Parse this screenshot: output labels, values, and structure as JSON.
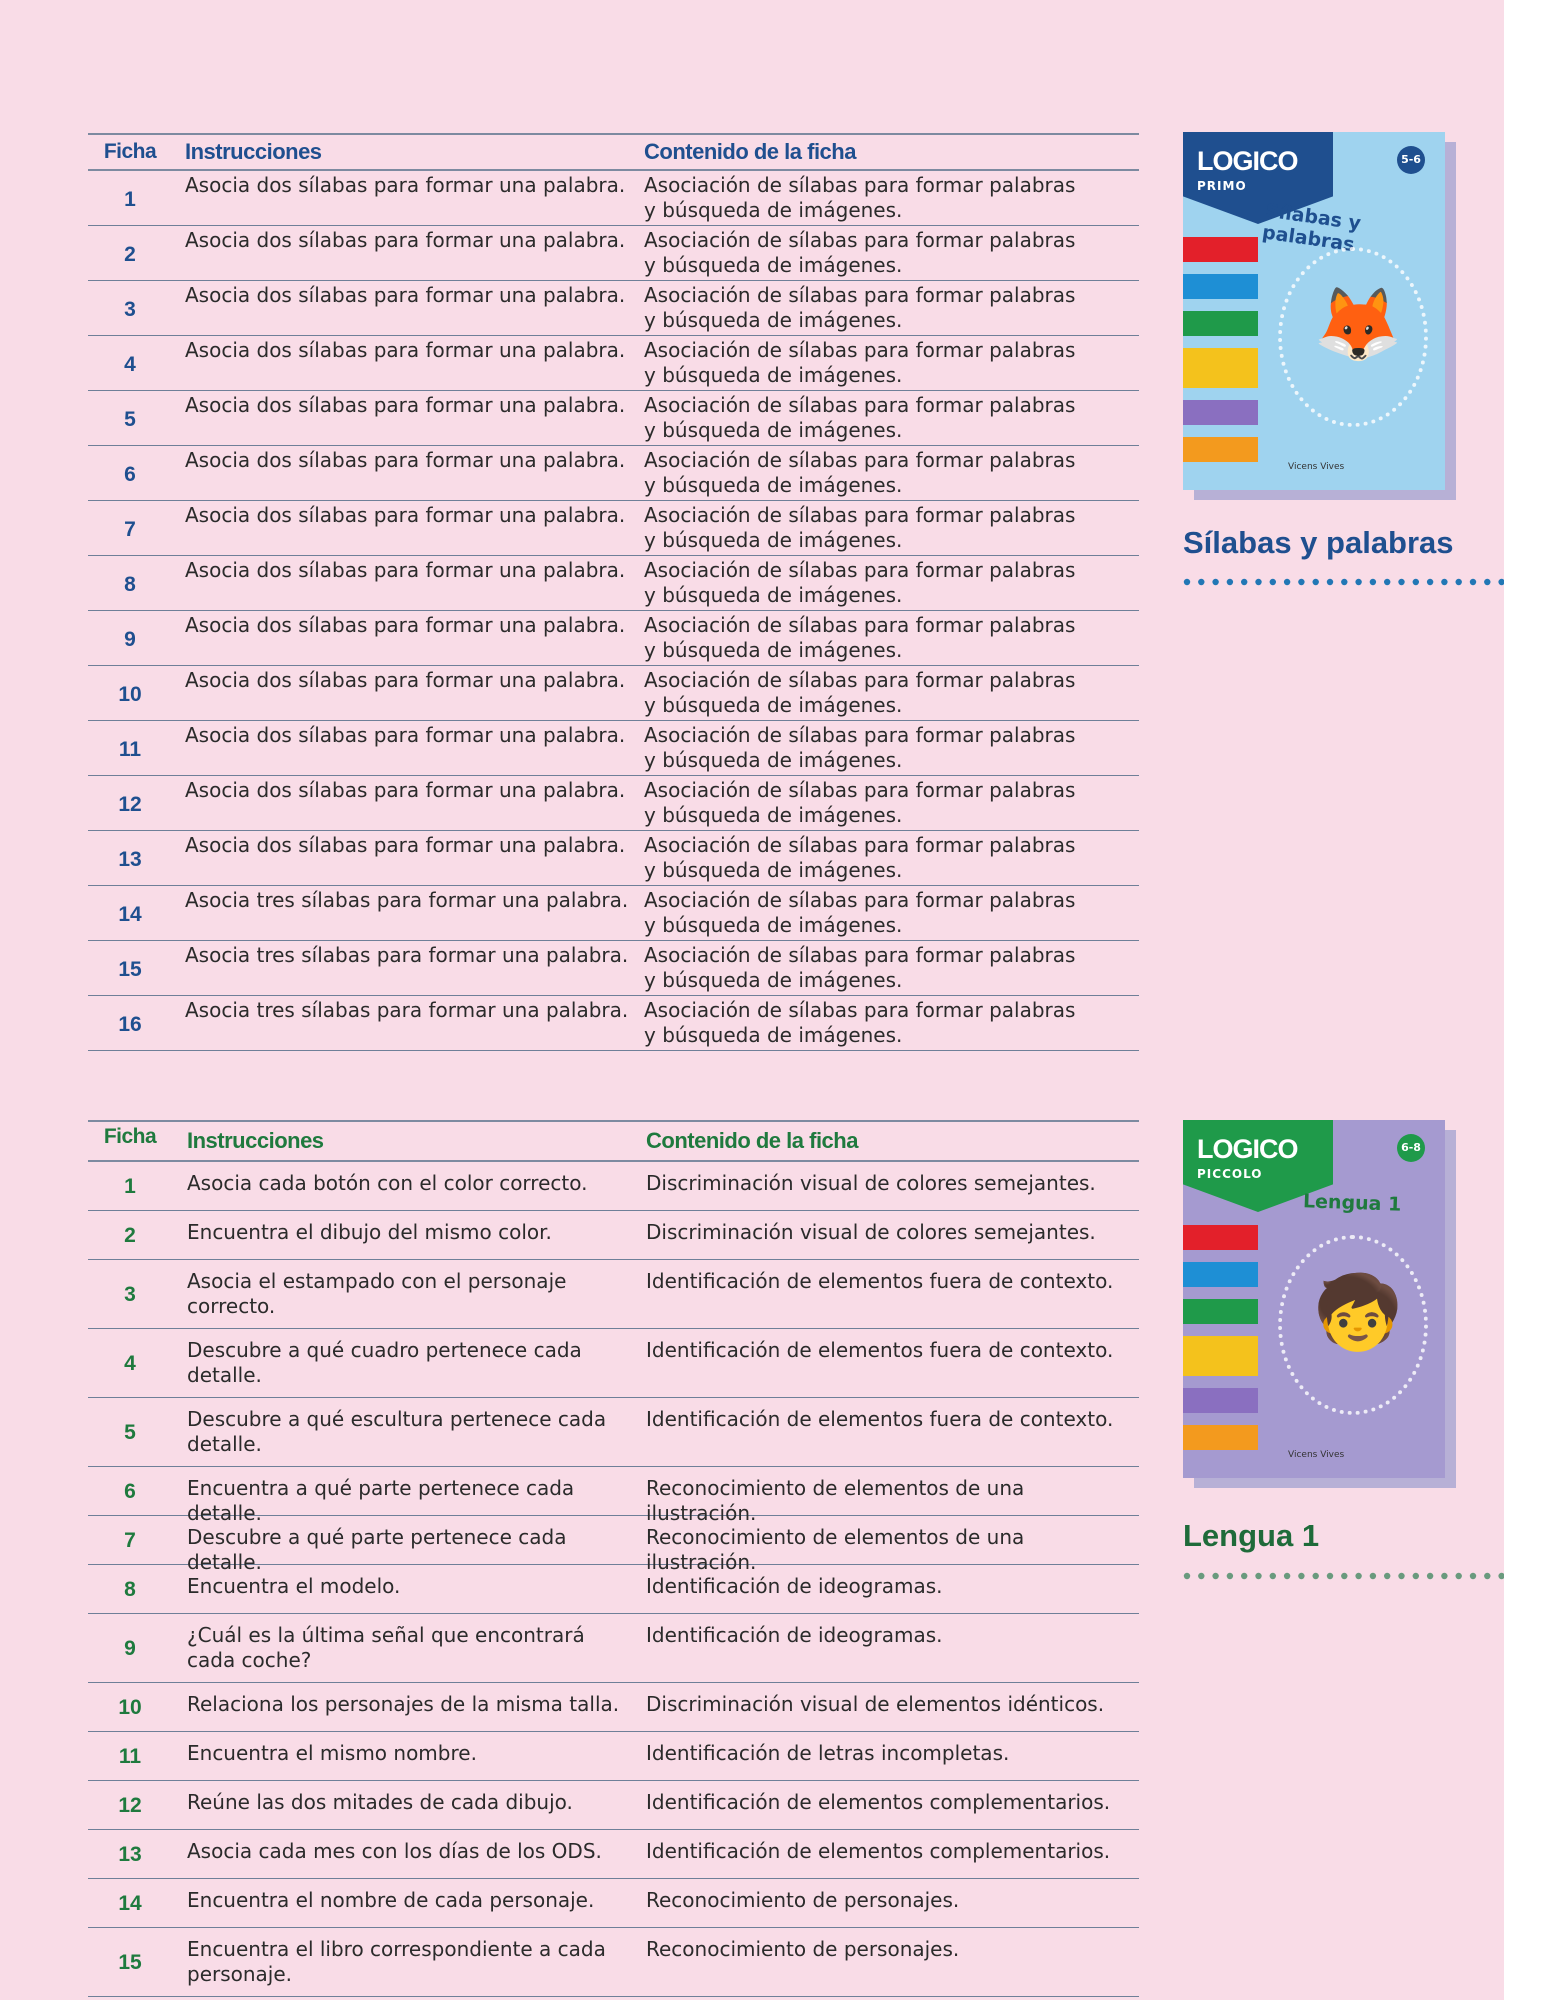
{
  "table1": {
    "headers": {
      "ficha": "Ficha",
      "instrucciones": "Instrucciones",
      "contenido": "Contenido de la ficha"
    },
    "rows": [
      {
        "n": "1",
        "i": "Asocia dos sílabas para formar una palabra.",
        "c1": "Asociación de sílabas para formar palabras",
        "c2": "y búsqueda de imágenes."
      },
      {
        "n": "2",
        "i": "Asocia dos sílabas para formar una palabra.",
        "c1": "Asociación de sílabas para formar palabras",
        "c2": "y búsqueda de imágenes."
      },
      {
        "n": "3",
        "i": "Asocia dos sílabas para formar una palabra.",
        "c1": "Asociación de sílabas para formar palabras",
        "c2": "y búsqueda de imágenes."
      },
      {
        "n": "4",
        "i": "Asocia dos sílabas para formar una palabra.",
        "c1": "Asociación de sílabas para formar palabras",
        "c2": "y búsqueda de imágenes."
      },
      {
        "n": "5",
        "i": "Asocia dos sílabas para formar una palabra.",
        "c1": "Asociación de sílabas para formar palabras",
        "c2": "y búsqueda de imágenes."
      },
      {
        "n": "6",
        "i": "Asocia dos sílabas para formar una palabra.",
        "c1": "Asociación de sílabas para formar palabras",
        "c2": "y búsqueda de imágenes."
      },
      {
        "n": "7",
        "i": "Asocia dos sílabas para formar una palabra.",
        "c1": "Asociación de sílabas para formar palabras",
        "c2": "y búsqueda de imágenes."
      },
      {
        "n": "8",
        "i": "Asocia dos sílabas para formar una palabra.",
        "c1": "Asociación de sílabas para formar palabras",
        "c2": "y búsqueda de imágenes."
      },
      {
        "n": "9",
        "i": "Asocia dos sílabas para formar una palabra.",
        "c1": "Asociación de sílabas para formar palabras",
        "c2": "y búsqueda de imágenes."
      },
      {
        "n": "10",
        "i": "Asocia dos sílabas para formar una palabra.",
        "c1": "Asociación de sílabas para formar palabras",
        "c2": "y búsqueda de imágenes."
      },
      {
        "n": "11",
        "i": "Asocia dos sílabas para formar una palabra.",
        "c1": "Asociación de sílabas para formar palabras",
        "c2": "y búsqueda de imágenes."
      },
      {
        "n": "12",
        "i": "Asocia dos sílabas para formar una palabra.",
        "c1": "Asociación de sílabas para formar palabras",
        "c2": "y búsqueda de imágenes."
      },
      {
        "n": "13",
        "i": "Asocia dos sílabas para formar una palabra.",
        "c1": "Asociación de sílabas para formar palabras",
        "c2": "y búsqueda de imágenes."
      },
      {
        "n": "14",
        "i": "Asocia tres sílabas para formar una palabra.",
        "c1": "Asociación de sílabas para formar palabras",
        "c2": "y búsqueda de imágenes."
      },
      {
        "n": "15",
        "i": "Asocia tres sílabas para formar una palabra.",
        "c1": "Asociación de sílabas para formar palabras",
        "c2": "y búsqueda de imágenes."
      },
      {
        "n": "16",
        "i": "Asocia tres sílabas para formar una palabra.",
        "c1": "Asociación de sílabas para formar palabras",
        "c2": "y búsqueda de imágenes."
      }
    ]
  },
  "book1": {
    "logo": "LOGICO",
    "series": "PRIMO",
    "age": "5-6",
    "cover_title": "Sílabas y palabras",
    "publisher": "Vicens Vives",
    "title": "Sílabas y palabras",
    "color": "#1f4f8f"
  },
  "table2": {
    "headers": {
      "ficha": "Ficha",
      "instrucciones": "Instrucciones",
      "contenido": "Contenido de la ficha"
    },
    "rows": [
      {
        "n": "1",
        "i1": "Asocia cada botón con el color correcto.",
        "i2": "",
        "c": "Discriminación visual de colores semejantes."
      },
      {
        "n": "2",
        "i1": "Encuentra el dibujo del mismo color.",
        "i2": "",
        "c": "Discriminación visual de colores semejantes."
      },
      {
        "n": "3",
        "i1": "Asocia el estampado con el personaje",
        "i2": "correcto.",
        "c": "Identificación de elementos fuera de contexto."
      },
      {
        "n": "4",
        "i1": "Descubre a qué cuadro pertenece cada",
        "i2": "detalle.",
        "c": "Identificación de elementos fuera de contexto."
      },
      {
        "n": "5",
        "i1": "Descubre a qué escultura pertenece cada",
        "i2": "detalle.",
        "c": "Identificación de elementos fuera de contexto."
      },
      {
        "n": "6",
        "i1": "Encuentra a qué parte pertenece cada detalle.",
        "i2": "",
        "c": "Reconocimiento de elementos de una ilustración."
      },
      {
        "n": "7",
        "i1": "Descubre a qué parte pertenece cada detalle.",
        "i2": "",
        "c": "Reconocimiento de elementos de una ilustración."
      },
      {
        "n": "8",
        "i1": "Encuentra el modelo.",
        "i2": "",
        "c": "Identificación de ideogramas."
      },
      {
        "n": "9",
        "i1": "¿Cuál es la última señal que encontrará",
        "i2": "cada coche?",
        "c": "Identificación de ideogramas."
      },
      {
        "n": "10",
        "i1": "Relaciona los personajes de la misma talla.",
        "i2": "",
        "c": "Discriminación visual de elementos idénticos."
      },
      {
        "n": "11",
        "i1": "Encuentra el mismo nombre.",
        "i2": "",
        "c": "Identificación de letras incompletas."
      },
      {
        "n": "12",
        "i1": "Reúne las dos mitades de cada dibujo.",
        "i2": "",
        "c": "Identificación de elementos complementarios."
      },
      {
        "n": "13",
        "i1": "Asocia cada mes con los días de los ODS.",
        "i2": "",
        "c": "Identificación de elementos complementarios."
      },
      {
        "n": "14",
        "i1": "Encuentra el nombre de cada personaje.",
        "i2": "",
        "c": "Reconocimiento de personajes."
      },
      {
        "n": "15",
        "i1": "Encuentra el libro correspondiente a cada",
        "i2": "personaje.",
        "c": "Reconocimiento de personajes."
      }
    ]
  },
  "book2": {
    "logo": "LOGICO",
    "series": "PICCOLO",
    "age": "6-8",
    "cover_title": "Lengua 1",
    "publisher": "Vicens Vives",
    "title": "Lengua 1",
    "color": "#1f7a3e"
  },
  "colors": {
    "background": "#f9dce7",
    "blue": "#1f4f8f",
    "green": "#1f7a3e"
  }
}
